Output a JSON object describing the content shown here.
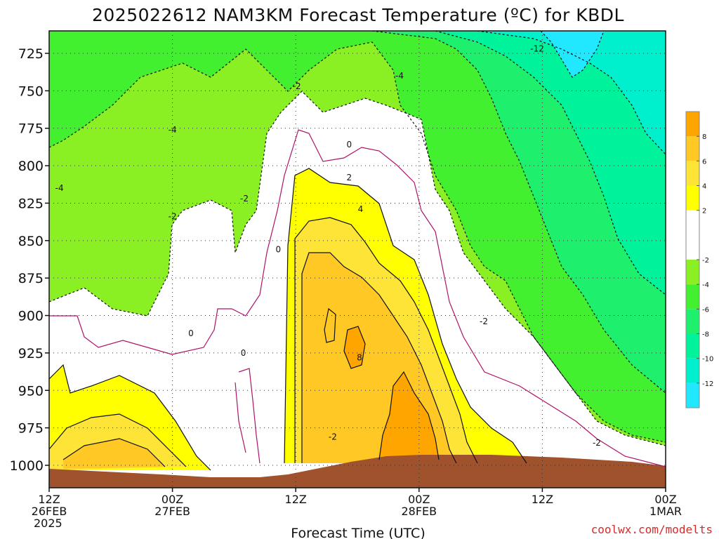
{
  "title": "2025022612 NAM3KM Forecast Temperature (ºC) for KBDL",
  "credit": "coolwx.com/modelts",
  "chart_data": {
    "type": "heatmap",
    "title": "2025022612 NAM3KM Forecast Temperature (ºC) for KBDL",
    "xlabel": "Forecast Time (UTC)",
    "ylabel": "",
    "x_range_hours": [
      0,
      60
    ],
    "y_range_hPa": [
      1015,
      710
    ],
    "y_scale": "pressure (inverted)",
    "grid": true,
    "x_ticks": [
      {
        "hour": 0,
        "line1": "12Z",
        "line2": "26FEB",
        "line3": "2025"
      },
      {
        "hour": 12,
        "line1": "00Z",
        "line2": "27FEB",
        "line3": ""
      },
      {
        "hour": 24,
        "line1": "12Z",
        "line2": "",
        "line3": ""
      },
      {
        "hour": 36,
        "line1": "00Z",
        "line2": "28FEB",
        "line3": ""
      },
      {
        "hour": 48,
        "line1": "12Z",
        "line2": "",
        "line3": ""
      },
      {
        "hour": 60,
        "line1": "00Z",
        "line2": "1MAR",
        "line3": ""
      }
    ],
    "y_ticks": [
      "725",
      "750",
      "775",
      "800",
      "825",
      "850",
      "875",
      "900",
      "925",
      "950",
      "975",
      "1000"
    ],
    "y_tick_values": [
      725,
      750,
      775,
      800,
      825,
      850,
      875,
      900,
      925,
      950,
      975,
      1000
    ],
    "colorbar": {
      "placement": "right",
      "levels": [
        -14,
        -12,
        -10,
        -8,
        -6,
        -4,
        -2,
        2,
        4,
        6,
        8,
        10
      ],
      "tick_labels": [
        "-12",
        "-10",
        "-8",
        "-6",
        "-4",
        "-2",
        "2",
        "4",
        "6",
        "8"
      ],
      "tick_values": [
        -12,
        -10,
        -8,
        -6,
        -4,
        -2,
        2,
        4,
        6,
        8
      ],
      "colors": [
        "#22e8ff",
        "#00f0cd",
        "#00f39b",
        "#1ef06e",
        "#42f030",
        "#8af024",
        "#ffffff",
        "#ffff00",
        "#ffe438",
        "#ffc824",
        "#ffa500"
      ]
    },
    "contour_labels": [
      {
        "text": "-12",
        "hour": 47.5,
        "hPa": 722
      },
      {
        "text": "-4",
        "hour": 34.1,
        "hPa": 740
      },
      {
        "text": "-2",
        "hour": 24.1,
        "hPa": 747
      },
      {
        "text": "-4",
        "hour": 12.0,
        "hPa": 776
      },
      {
        "text": "-4",
        "hour": 1.0,
        "hPa": 815
      },
      {
        "text": "-2",
        "hour": 12.0,
        "hPa": 834
      },
      {
        "text": "-2",
        "hour": 19.0,
        "hPa": 822
      },
      {
        "text": "0",
        "hour": 29.2,
        "hPa": 786
      },
      {
        "text": "2",
        "hour": 29.2,
        "hPa": 808
      },
      {
        "text": "4",
        "hour": 30.3,
        "hPa": 829
      },
      {
        "text": "0",
        "hour": 22.3,
        "hPa": 856
      },
      {
        "text": "0",
        "hour": 13.8,
        "hPa": 912
      },
      {
        "text": "0",
        "hour": 18.9,
        "hPa": 925
      },
      {
        "text": "8",
        "hour": 30.2,
        "hPa": 928
      },
      {
        "text": "-2",
        "hour": 42.3,
        "hPa": 904
      },
      {
        "text": "-2",
        "hour": 27.6,
        "hPa": 981
      },
      {
        "text": "-2",
        "hour": 53.3,
        "hPa": 985
      }
    ]
  }
}
